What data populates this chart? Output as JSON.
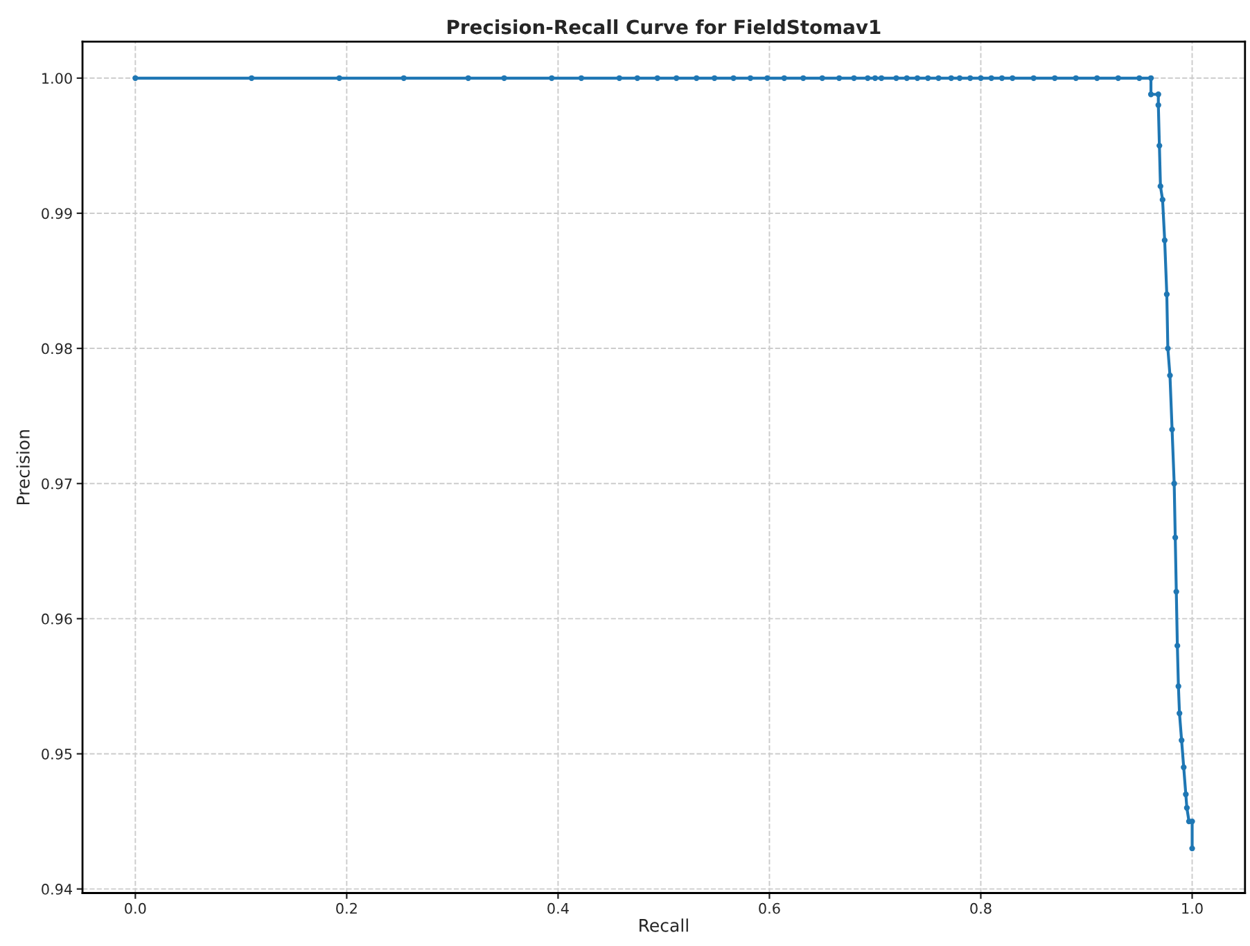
{
  "chart_data": {
    "type": "line",
    "title": "Precision-Recall Curve for FieldStomav1",
    "xlabel": "Recall",
    "ylabel": "Precision",
    "series": [
      {
        "color": "#1f77b4",
        "x": [
          0,
          0.11,
          0.193,
          0.254,
          0.315,
          0.349,
          0.394,
          0.422,
          0.458,
          0.475,
          0.494,
          0.512,
          0.531,
          0.548,
          0.566,
          0.582,
          0.598,
          0.614,
          0.632,
          0.65,
          0.666,
          0.68,
          0.693,
          0.7,
          0.706,
          0.72,
          0.73,
          0.74,
          0.75,
          0.76,
          0.772,
          0.78,
          0.79,
          0.8,
          0.81,
          0.82,
          0.83,
          0.85,
          0.87,
          0.89,
          0.91,
          0.93,
          0.95,
          0.961,
          0.961,
          0.968,
          0.968,
          0.969,
          0.97,
          0.972,
          0.974,
          0.976,
          0.977,
          0.979,
          0.981,
          0.983,
          0.984,
          0.985,
          0.986,
          0.987,
          0.988,
          0.99,
          0.992,
          0.994,
          0.995,
          0.997,
          1.0,
          1.0
        ],
        "values": [
          1,
          1,
          1,
          1,
          1,
          1,
          1,
          1,
          1,
          1,
          1,
          1,
          1,
          1,
          1,
          1,
          1,
          1,
          1,
          1,
          1,
          1,
          1,
          1,
          1,
          1,
          1,
          1,
          1,
          1,
          1,
          1,
          1,
          1,
          1,
          1,
          1,
          1,
          1,
          1,
          1,
          1,
          1,
          1,
          0.9988,
          0.9988,
          0.998,
          0.995,
          0.992,
          0.991,
          0.988,
          0.984,
          0.98,
          0.978,
          0.974,
          0.97,
          0.966,
          0.962,
          0.958,
          0.955,
          0.953,
          0.951,
          0.949,
          0.947,
          0.946,
          0.945,
          0.945,
          0.943
        ]
      }
    ],
    "xlim": [
      -0.05,
      1.05
    ],
    "ylim": [
      0.9397,
      1.0027
    ],
    "xticks": [
      {
        "value": 0,
        "label": "0.0"
      },
      0.2,
      0.4,
      0.6,
      0.8,
      {
        "value": 1,
        "label": "1.0"
      }
    ],
    "yticks": [
      {
        "value": 0.94,
        "label": "0.94"
      },
      0.95,
      0.96,
      0.97,
      0.98,
      0.99,
      {
        "value": 1,
        "label": "1.00"
      }
    ],
    "grid": true,
    "marker": "circle",
    "line_style": "solid"
  }
}
